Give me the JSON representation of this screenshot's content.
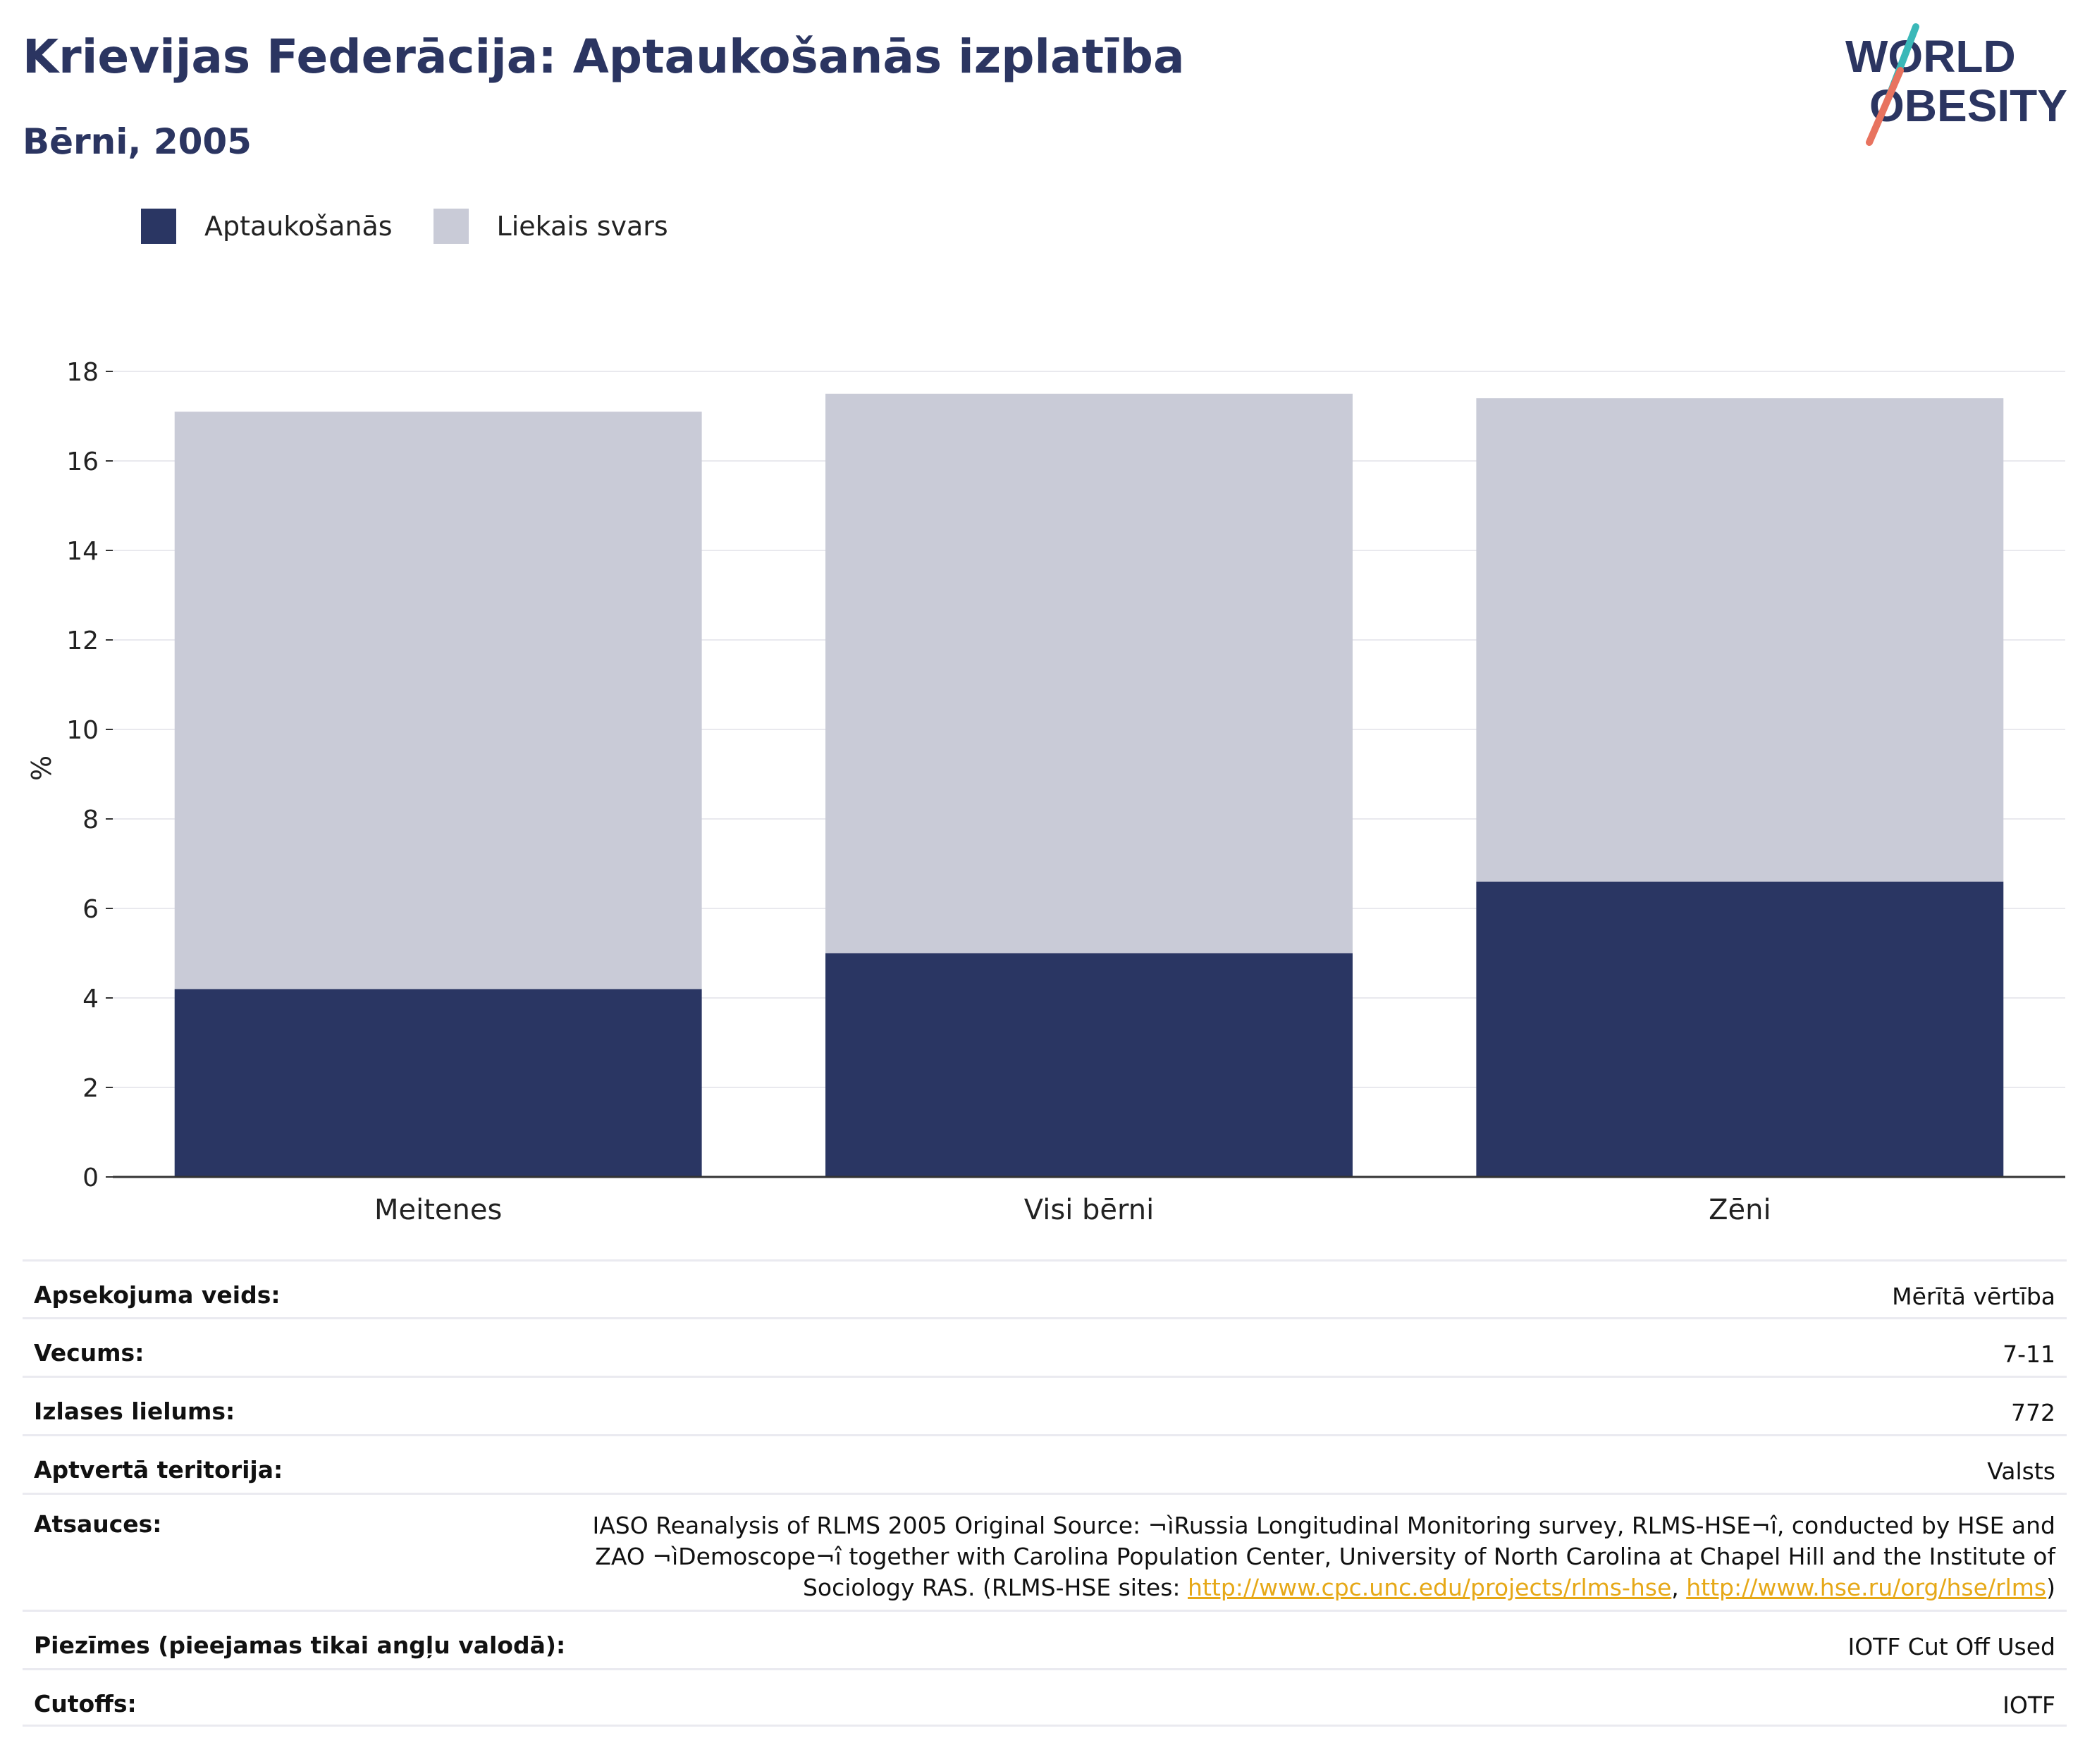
{
  "header": {
    "title": "Krievijas Federācija: Aptaukošanās izplatība",
    "subtitle": "Bērni, 2005"
  },
  "logo": {
    "line1": "WORLD",
    "line2": "OBESITY"
  },
  "colors": {
    "obesity": "#2a3663",
    "overweight": "#c9cbd7",
    "title": "#2b3561",
    "link": "#e6a817"
  },
  "chart_data": {
    "type": "bar",
    "stacked": true,
    "categories": [
      "Meitenes",
      "Visi bērni",
      "Zēni"
    ],
    "series": [
      {
        "name": "Aptaukošanās",
        "values": [
          4.2,
          5.0,
          6.6
        ]
      },
      {
        "name": "Liekais svars",
        "values": [
          12.9,
          12.5,
          10.8
        ]
      }
    ],
    "ylabel": "%",
    "ylim": [
      0,
      18
    ],
    "yticks": [
      0,
      2,
      4,
      6,
      8,
      10,
      12,
      14,
      16,
      18
    ],
    "grid": true,
    "legend_position": "top-left"
  },
  "meta": {
    "survey_label": "Apsekojuma veids:",
    "survey_value": "Mērītā vērtība",
    "age_label": "Vecums:",
    "age_value": "7-11",
    "sample_label": "Izlases lielums:",
    "sample_value": "772",
    "area_label": "Aptvertā teritorija:",
    "area_value": "Valsts",
    "refs_label": "Atsauces:",
    "refs_text_1": "IASO Reanalysis of RLMS 2005 Original Source: ¬ìRussia Longitudinal Monitoring survey, RLMS-HSE¬î, conducted by HSE and ZAO ¬ìDemoscope¬î together with Carolina Population Center, University of North Carolina at Chapel Hill and the Institute of Sociology RAS. (RLMS-HSE sites: ",
    "refs_link_1": "http://www.cpc.unc.edu/projects/rlms-hse",
    "refs_sep": ", ",
    "refs_link_2": "http://www.hse.ru/org/hse/rlms",
    "refs_end": ")",
    "notes_label": "Piezīmes (pieejamas tikai angļu valodā):",
    "notes_value": "IOTF Cut Off Used",
    "cutoffs_label": "Cutoffs:",
    "cutoffs_value": "IOTF"
  }
}
